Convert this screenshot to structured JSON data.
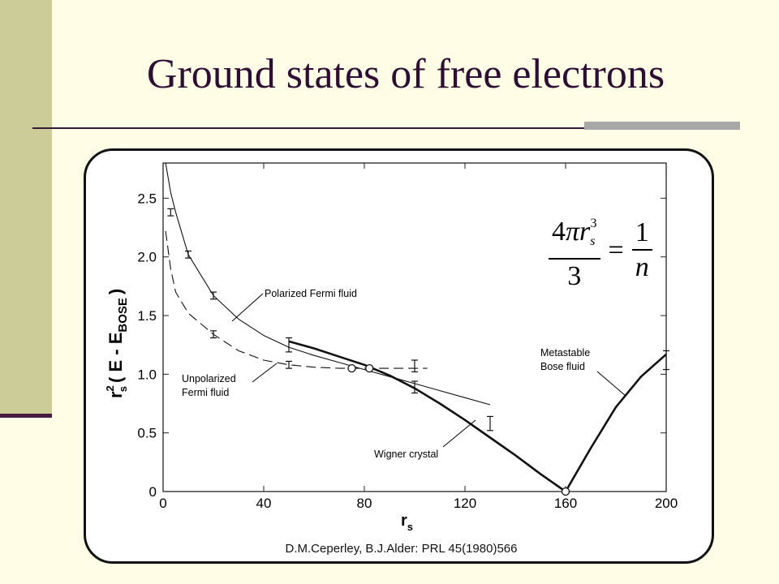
{
  "slide": {
    "title": "Ground states of free electrons"
  },
  "citation": "D.M.Ceperley, B.J.Alder: PRL 45(1980)566",
  "formula": {
    "lhs_num_coef": "4",
    "lhs_num_pi": "π",
    "lhs_num_r": "r",
    "lhs_num_sub": "s",
    "lhs_num_sup": "3",
    "lhs_den": "3",
    "equals": "=",
    "rhs_num": "1",
    "rhs_den": "n"
  },
  "chart_data": {
    "type": "line",
    "xlabel": "r",
    "xlabel_sub": "s",
    "ylabel_main": "r",
    "ylabel_sup": "2",
    "ylabel_sub": "s",
    "ylabel_rest": "( E - E",
    "ylabel_bose": "BOSE",
    "ylabel_close": ")",
    "xlim": [
      0,
      200
    ],
    "ylim": [
      0,
      2.8
    ],
    "x_ticks": [
      0,
      40,
      80,
      120,
      160,
      200
    ],
    "y_ticks": [
      0,
      0.5,
      1.0,
      1.5,
      2.0,
      2.5
    ],
    "x_tick_labels": [
      "0",
      "40",
      "80",
      "120",
      "160",
      "200"
    ],
    "y_tick_labels": [
      "0",
      "0.5",
      "1.0",
      "1.5",
      "2.0",
      "2.5"
    ],
    "grid": false,
    "series": [
      {
        "name": "Polarized Fermi fluid",
        "style": "solid-thin",
        "x": [
          1,
          3,
          5,
          10,
          20,
          30,
          40,
          50,
          60,
          70,
          80,
          90,
          100,
          110,
          120,
          130
        ],
        "y": [
          2.8,
          2.55,
          2.38,
          2.02,
          1.67,
          1.47,
          1.33,
          1.23,
          1.16,
          1.1,
          1.04,
          0.98,
          0.92,
          0.86,
          0.8,
          0.74
        ]
      },
      {
        "name": "Unpolarized Fermi fluid",
        "style": "dashed",
        "x": [
          1,
          3,
          5,
          10,
          20,
          30,
          40,
          50,
          60,
          70,
          80,
          90,
          100,
          105
        ],
        "y": [
          2.22,
          1.9,
          1.7,
          1.52,
          1.34,
          1.2,
          1.12,
          1.08,
          1.06,
          1.05,
          1.05,
          1.05,
          1.05,
          1.05
        ]
      },
      {
        "name": "Wigner crystal",
        "style": "solid-thick",
        "x": [
          50,
          60,
          70,
          80,
          90,
          100,
          110,
          120,
          130,
          140,
          150,
          160
        ],
        "y": [
          1.28,
          1.22,
          1.15,
          1.08,
          0.99,
          0.88,
          0.75,
          0.61,
          0.46,
          0.31,
          0.15,
          0.0
        ]
      },
      {
        "name": "Metastable Bose fluid",
        "style": "solid-thick",
        "x": [
          160,
          170,
          180,
          190,
          200
        ],
        "y": [
          0.0,
          0.37,
          0.72,
          0.98,
          1.17
        ]
      }
    ],
    "error_bars": [
      {
        "x": 3,
        "y": 2.38,
        "err": 0.03
      },
      {
        "x": 10,
        "y": 2.02,
        "err": 0.03
      },
      {
        "x": 20,
        "y": 1.67,
        "err": 0.03
      },
      {
        "x": 20,
        "y": 1.34,
        "err": 0.03
      },
      {
        "x": 50,
        "y": 1.25,
        "err": 0.06
      },
      {
        "x": 50,
        "y": 1.08,
        "err": 0.03
      },
      {
        "x": 100,
        "y": 1.07,
        "err": 0.05
      },
      {
        "x": 100,
        "y": 0.89,
        "err": 0.05
      },
      {
        "x": 130,
        "y": 0.58,
        "err": 0.06
      },
      {
        "x": 200,
        "y": 1.12,
        "err": 0.08
      }
    ],
    "transition_markers": [
      {
        "x": 75,
        "y": 1.05
      },
      {
        "x": 82,
        "y": 1.05
      },
      {
        "x": 160,
        "y": 0.0
      }
    ],
    "annotations": [
      {
        "text": "Polarized Fermi fluid"
      },
      {
        "text": "Unpolarized"
      },
      {
        "text": "Fermi fluid"
      },
      {
        "text": "Wigner crystal"
      },
      {
        "text": "Metastable"
      },
      {
        "text": "Bose fluid"
      }
    ]
  }
}
